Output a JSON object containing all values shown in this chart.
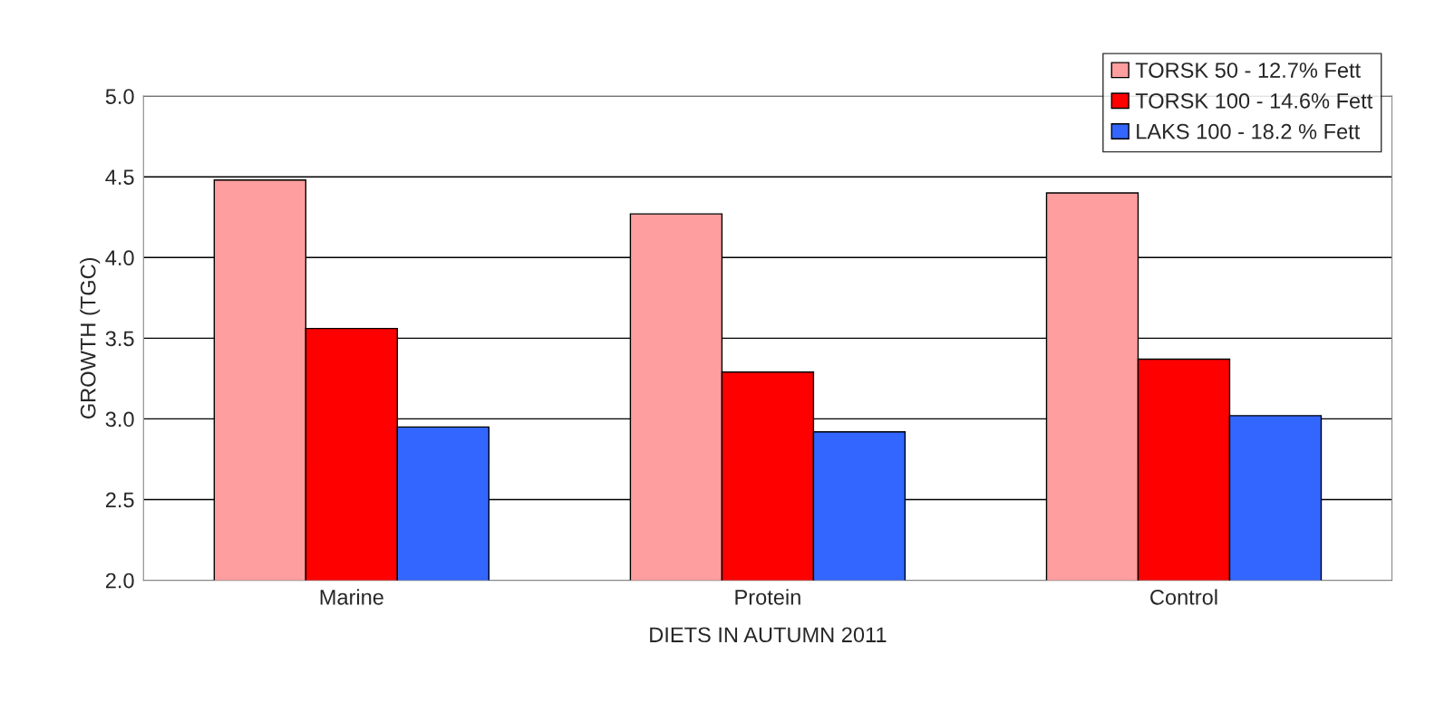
{
  "chart_data": {
    "type": "bar",
    "xlabel": "DIETS IN AUTUMN 2011",
    "ylabel": "GROWTH (TGC)",
    "categories": [
      "Marine",
      "Protein",
      "Control"
    ],
    "series": [
      {
        "name": "TORSK 50 - 12.7% Fett",
        "color": "#ff9e9e",
        "values": [
          4.48,
          4.27,
          4.4
        ]
      },
      {
        "name": "TORSK 100 - 14.6% Fett",
        "color": "#ff0000",
        "values": [
          3.56,
          3.29,
          3.37
        ]
      },
      {
        "name": "LAKS 100 - 18.2 % Fett",
        "color": "#3366ff",
        "values": [
          2.95,
          2.92,
          3.02
        ]
      }
    ],
    "ylim": [
      2.0,
      5.0
    ],
    "yticks": [
      {
        "value": 2.0,
        "label": "2.0"
      },
      {
        "value": 2.5,
        "label": "2.5"
      },
      {
        "value": 3.0,
        "label": "3.0"
      },
      {
        "value": 3.5,
        "label": "3.5"
      },
      {
        "value": 4.0,
        "label": "4.0"
      },
      {
        "value": 4.5,
        "label": "4.5"
      },
      {
        "value": 5.0,
        "label": "5.0"
      }
    ],
    "grid": "y",
    "legend": "top right"
  }
}
